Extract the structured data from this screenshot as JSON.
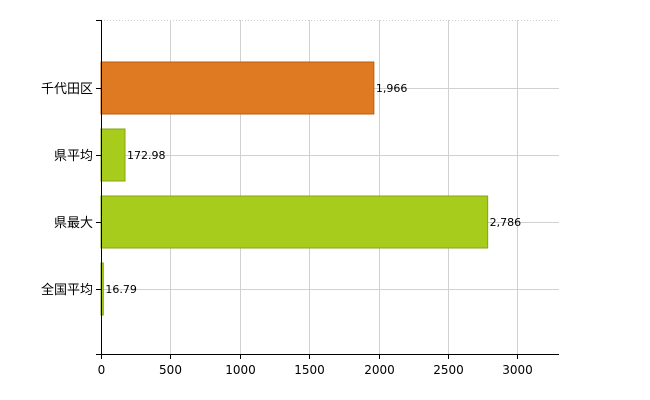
{
  "chart_data": {
    "type": "bar",
    "orientation": "horizontal",
    "categories": [
      "千代田区",
      "県平均",
      "県最大",
      "全国平均"
    ],
    "values": [
      1966,
      172.98,
      2786,
      16.79
    ],
    "value_labels": [
      "1,966",
      "172.98",
      "2,786",
      "16.79"
    ],
    "bar_colors": [
      "#e07a22",
      "#a8cc1c",
      "#a8cc1c",
      "#a8cc1c"
    ],
    "bar_border_colors": [
      "#b85e0e",
      "#86a514",
      "#86a514",
      "#86a514"
    ],
    "xlim": [
      0,
      3300
    ],
    "xticks": [
      0,
      500,
      1000,
      1500,
      2000,
      2500,
      3000
    ],
    "grid": true,
    "grid_color": "#d0d0d0",
    "axis_color": "#000000",
    "title": "",
    "xlabel": "",
    "ylabel": ""
  }
}
